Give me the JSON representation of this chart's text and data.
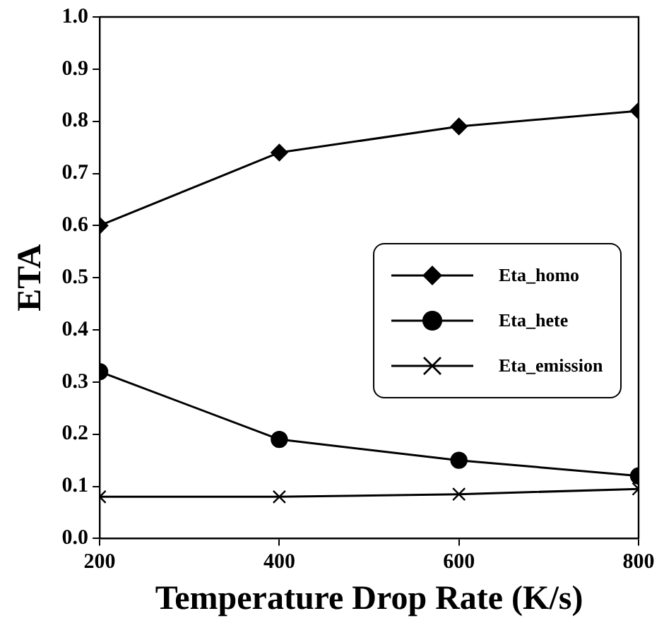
{
  "chart_data": {
    "type": "line",
    "xlabel": "Temperature Drop Rate (K/s)",
    "ylabel": "ETA",
    "x": [
      200,
      400,
      600,
      800
    ],
    "series": [
      {
        "name": "Eta_homo",
        "color": "#000000",
        "marker": "diamond",
        "values": [
          0.6,
          0.74,
          0.79,
          0.82
        ]
      },
      {
        "name": "Eta_hete",
        "color": "#000000",
        "marker": "circle",
        "values": [
          0.32,
          0.19,
          0.15,
          0.12
        ]
      },
      {
        "name": "Eta_emission",
        "color": "#000000",
        "marker": "cross",
        "values": [
          0.08,
          0.08,
          0.085,
          0.095
        ]
      }
    ],
    "xlim": [
      200,
      800
    ],
    "xticks": [
      200,
      400,
      600,
      800
    ],
    "ylim": [
      0,
      1
    ],
    "yticks": [
      {
        "value": 0,
        "label": "0.0"
      },
      0.1,
      0.2,
      0.3,
      0.4,
      0.5,
      0.6,
      0.7,
      0.8,
      0.9,
      {
        "value": 1,
        "label": "1.0"
      }
    ],
    "grid": false,
    "legend": "right",
    "line_style": "solid"
  }
}
